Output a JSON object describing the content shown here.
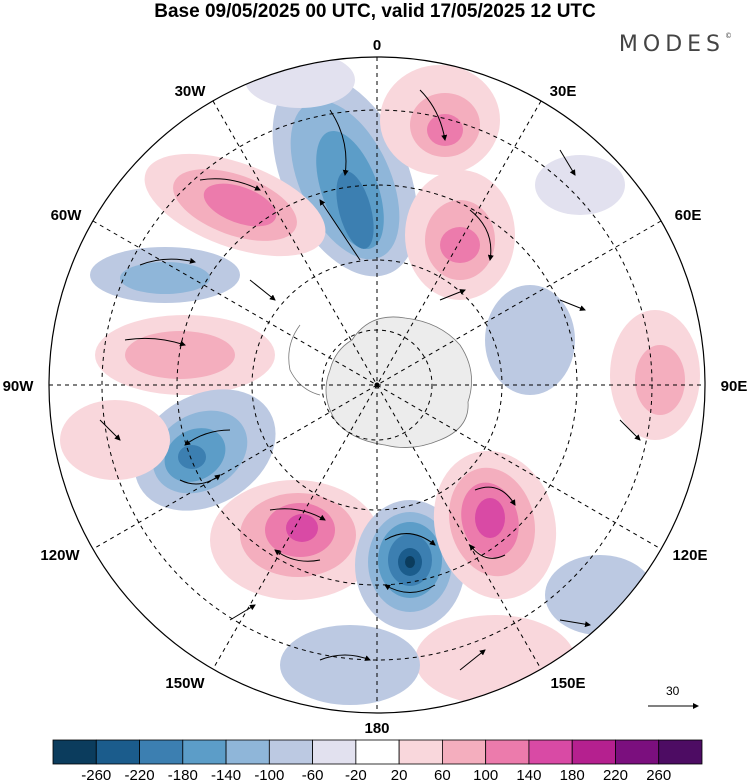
{
  "title": "Base 09/05/2025 00 UTC, valid 17/05/2025 12 UTC",
  "logo": "MODES",
  "logo_mark": "©",
  "longitude_labels": {
    "n0": "0",
    "e30": "30E",
    "e60": "60E",
    "e90": "90E",
    "e120": "120E",
    "e150": "150E",
    "s180": "180",
    "w150": "150W",
    "w120": "120W",
    "w90": "90W",
    "w60": "60W",
    "w30": "30W"
  },
  "vector_reference": "30",
  "colorbar": {
    "labels": [
      "-260",
      "-220",
      "-180",
      "-140",
      "-100",
      "-60",
      "-20",
      "20",
      "60",
      "100",
      "140",
      "180",
      "220",
      "260"
    ],
    "colors": [
      "#0b3c5d",
      "#1b5c8c",
      "#3c7fb1",
      "#5c9dc8",
      "#8fb6d9",
      "#bcc9e2",
      "#e2e1ef",
      "#ffffff",
      "#f9d7dc",
      "#f4aebe",
      "#ec7bac",
      "#d94aa5",
      "#b5208f",
      "#7b0f7e",
      "#4d0c63"
    ]
  },
  "map": {
    "projection": "south-polar-stereographic",
    "anomalies": [
      {
        "sign": "negative",
        "level": 4
      },
      {
        "sign": "positive",
        "level": 3
      },
      {
        "sign": "positive",
        "level": 3
      },
      {
        "sign": "positive",
        "level": 4
      },
      {
        "sign": "negative",
        "level": 3
      },
      {
        "sign": "negative",
        "level": 6
      },
      {
        "sign": "positive",
        "level": 5
      },
      {
        "sign": "positive",
        "level": 5
      },
      {
        "sign": "negative",
        "level": 2
      },
      {
        "sign": "negative",
        "level": 2
      }
    ]
  }
}
